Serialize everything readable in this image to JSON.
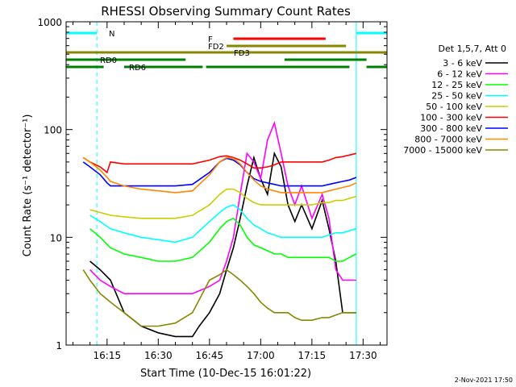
{
  "chart_data": {
    "type": "line",
    "title": "RHESSI Observing Summary Count Rates",
    "xlabel": "Start Time (10-Dec-15 16:01:22)",
    "ylabel": "Count Rate (s⁻¹ detector⁻¹)",
    "yscale": "log",
    "ylim": [
      1,
      1000
    ],
    "xlim": [
      "16:03",
      "17:37"
    ],
    "x_unit": "time of day (HH:MM)",
    "x_ticks": [
      "16:15",
      "16:30",
      "16:45",
      "17:00",
      "17:15",
      "17:30"
    ],
    "y_ticks": [
      "1",
      "10",
      "100",
      "1000"
    ],
    "legend_title": "Det 1,5,7, Att 0",
    "legend_position": "right",
    "date_stamp": "2-Nov-2021 17:50",
    "series": [
      {
        "name": "3 - 6 keV",
        "color": "#000000",
        "x": [
          "16:10",
          "16:13",
          "16:16",
          "16:20",
          "16:25",
          "16:30",
          "16:35",
          "16:40",
          "16:42",
          "16:45",
          "16:48",
          "16:50",
          "16:52",
          "16:54",
          "16:56",
          "16:58",
          "17:00",
          "17:02",
          "17:04",
          "17:06",
          "17:08",
          "17:10",
          "17:12",
          "17:15",
          "17:18",
          "17:20",
          "17:22",
          "17:24",
          "17:26",
          "17:28"
        ],
        "y": [
          6,
          5,
          4,
          2,
          1.5,
          1.3,
          1.2,
          1.2,
          1.5,
          2,
          3,
          5,
          8,
          15,
          30,
          55,
          35,
          25,
          60,
          45,
          20,
          14,
          20,
          12,
          22,
          12,
          6,
          2,
          2,
          2
        ]
      },
      {
        "name": "6 - 12 keV",
        "color": "#ff00ff",
        "x": [
          "16:10",
          "16:13",
          "16:16",
          "16:20",
          "16:25",
          "16:30",
          "16:35",
          "16:40",
          "16:45",
          "16:48",
          "16:50",
          "16:52",
          "16:54",
          "16:56",
          "16:58",
          "17:00",
          "17:02",
          "17:04",
          "17:06",
          "17:08",
          "17:10",
          "17:12",
          "17:15",
          "17:18",
          "17:20",
          "17:22",
          "17:24",
          "17:26",
          "17:28"
        ],
        "y": [
          5,
          4,
          3.5,
          3,
          3,
          3,
          3,
          3,
          3.5,
          4,
          6,
          10,
          25,
          60,
          50,
          35,
          80,
          115,
          60,
          30,
          20,
          30,
          15,
          25,
          15,
          5,
          4,
          4,
          4
        ]
      },
      {
        "name": "12 - 25 keV",
        "color": "#00ff00",
        "x": [
          "16:10",
          "16:13",
          "16:16",
          "16:20",
          "16:25",
          "16:30",
          "16:35",
          "16:40",
          "16:45",
          "16:48",
          "16:50",
          "16:52",
          "16:54",
          "16:56",
          "16:58",
          "17:00",
          "17:02",
          "17:04",
          "17:06",
          "17:08",
          "17:10",
          "17:12",
          "17:15",
          "17:18",
          "17:20",
          "17:22",
          "17:24",
          "17:26",
          "17:28"
        ],
        "y": [
          12,
          10,
          8,
          7,
          6.5,
          6,
          6,
          6.5,
          9,
          12,
          14,
          15,
          13,
          10,
          8.5,
          8,
          7.5,
          7,
          7,
          6.5,
          6.5,
          6.5,
          6.5,
          6.5,
          6.5,
          6,
          6,
          6.5,
          7
        ]
      },
      {
        "name": "25 - 50 keV",
        "color": "#00ffff",
        "x": [
          "16:10",
          "16:13",
          "16:16",
          "16:20",
          "16:25",
          "16:30",
          "16:35",
          "16:40",
          "16:45",
          "16:48",
          "16:50",
          "16:52",
          "16:54",
          "16:56",
          "16:58",
          "17:00",
          "17:02",
          "17:04",
          "17:06",
          "17:08",
          "17:10",
          "17:12",
          "17:15",
          "17:18",
          "17:20",
          "17:22",
          "17:24",
          "17:26",
          "17:28"
        ],
        "y": [
          16,
          14,
          12,
          11,
          10,
          9.5,
          9,
          10,
          14,
          17,
          19,
          20,
          18,
          15,
          13,
          12,
          11,
          10.5,
          10,
          10,
          10,
          10,
          10,
          10,
          10.5,
          11,
          11,
          11.5,
          12
        ]
      },
      {
        "name": "50 - 100 keV",
        "color": "#cccc00",
        "x": [
          "16:10",
          "16:13",
          "16:16",
          "16:20",
          "16:25",
          "16:30",
          "16:35",
          "16:40",
          "16:45",
          "16:48",
          "16:50",
          "16:52",
          "16:54",
          "16:56",
          "16:58",
          "17:00",
          "17:02",
          "17:04",
          "17:06",
          "17:08",
          "17:10",
          "17:12",
          "17:15",
          "17:18",
          "17:20",
          "17:22",
          "17:24",
          "17:26",
          "17:28"
        ],
        "y": [
          18,
          17,
          16,
          15.5,
          15,
          15,
          15,
          16,
          20,
          25,
          28,
          28,
          26,
          23,
          21,
          20,
          20,
          20,
          20,
          20,
          20,
          20,
          20,
          21,
          21,
          22,
          22,
          23,
          24
        ]
      },
      {
        "name": "100 - 300 keV",
        "color": "#ff0000",
        "x": [
          "16:08",
          "16:10",
          "16:13",
          "16:15",
          "16:16",
          "16:20",
          "16:25",
          "16:30",
          "16:35",
          "16:40",
          "16:45",
          "16:48",
          "16:50",
          "16:52",
          "16:54",
          "16:56",
          "16:58",
          "17:00",
          "17:02",
          "17:04",
          "17:06",
          "17:08",
          "17:10",
          "17:12",
          "17:15",
          "17:18",
          "17:20",
          "17:22",
          "17:24",
          "17:26",
          "17:28"
        ],
        "y": [
          55,
          50,
          45,
          40,
          50,
          48,
          48,
          48,
          48,
          48,
          52,
          56,
          57,
          55,
          52,
          48,
          44,
          44,
          45,
          47,
          50,
          50,
          50,
          50,
          50,
          50,
          52,
          55,
          56,
          58,
          60
        ]
      },
      {
        "name": "300 - 800 keV",
        "color": "#0000ff",
        "x": [
          "16:08",
          "16:10",
          "16:13",
          "16:15",
          "16:16",
          "16:20",
          "16:25",
          "16:30",
          "16:35",
          "16:40",
          "16:45",
          "16:48",
          "16:50",
          "16:52",
          "16:54",
          "16:56",
          "16:58",
          "17:00",
          "17:02",
          "17:04",
          "17:06",
          "17:08",
          "17:10",
          "17:12",
          "17:15",
          "17:18",
          "17:20",
          "17:22",
          "17:24",
          "17:26",
          "17:28"
        ],
        "y": [
          50,
          45,
          38,
          32,
          30,
          30,
          30,
          30,
          30,
          31,
          40,
          50,
          54,
          52,
          47,
          40,
          35,
          33,
          32,
          31,
          30,
          30,
          30,
          30,
          30,
          30,
          31,
          32,
          33,
          34,
          36
        ]
      },
      {
        "name": "800 - 7000 keV",
        "color": "#ff8800",
        "x": [
          "16:08",
          "16:10",
          "16:13",
          "16:15",
          "16:16",
          "16:20",
          "16:25",
          "16:30",
          "16:35",
          "16:40",
          "16:45",
          "16:48",
          "16:50",
          "16:52",
          "16:54",
          "16:56",
          "16:58",
          "17:00",
          "17:02",
          "17:04",
          "17:06",
          "17:08",
          "17:10",
          "17:12",
          "17:15",
          "17:18",
          "17:20",
          "17:22",
          "17:24",
          "17:26",
          "17:28"
        ],
        "y": [
          55,
          50,
          42,
          36,
          33,
          30,
          28,
          27,
          26,
          27,
          38,
          50,
          55,
          54,
          48,
          40,
          34,
          30,
          28,
          27,
          26,
          26,
          26,
          26,
          26,
          26,
          27,
          28,
          29,
          30,
          32
        ]
      },
      {
        "name": "7000 - 15000 keV",
        "color": "#888800",
        "x": [
          "16:08",
          "16:10",
          "16:13",
          "16:16",
          "16:20",
          "16:25",
          "16:30",
          "16:35",
          "16:40",
          "16:45",
          "16:48",
          "16:50",
          "16:52",
          "16:54",
          "16:56",
          "16:58",
          "17:00",
          "17:02",
          "17:04",
          "17:06",
          "17:08",
          "17:10",
          "17:12",
          "17:15",
          "17:18",
          "17:20",
          "17:22",
          "17:24",
          "17:26",
          "17:28"
        ],
        "y": [
          5,
          4,
          3,
          2.5,
          2,
          1.5,
          1.5,
          1.6,
          2,
          4,
          4.5,
          5,
          4.5,
          4,
          3.5,
          3,
          2.5,
          2.2,
          2,
          2,
          2,
          1.8,
          1.7,
          1.7,
          1.8,
          1.8,
          1.9,
          2,
          2,
          2
        ]
      }
    ],
    "annotations": [
      {
        "label": "N",
        "color": "#00ffff",
        "segments": [
          [
            "16:03",
            "16:12"
          ],
          [
            "17:28",
            "17:37"
          ]
        ]
      },
      {
        "label": "F",
        "color": "#ff0000",
        "segments": [
          [
            "16:52",
            "17:19"
          ]
        ]
      },
      {
        "label": "FD2",
        "color": "#888800",
        "segments": [
          [
            "16:50",
            "17:25"
          ]
        ]
      },
      {
        "label": "FD3",
        "color": "#888800",
        "segments": [
          [
            "16:03",
            "17:37"
          ]
        ]
      },
      {
        "label": "RD0",
        "color": "#008000",
        "segments": [
          [
            "16:03",
            "16:38"
          ],
          [
            "17:07",
            "17:31"
          ]
        ]
      },
      {
        "label": "RD6",
        "color": "#008000",
        "segments": [
          [
            "16:03",
            "16:14"
          ],
          [
            "16:20",
            "16:43"
          ],
          [
            "16:44",
            "17:26"
          ],
          [
            "17:31",
            "17:37"
          ]
        ]
      }
    ],
    "vertical_markers": [
      {
        "style": "solid",
        "color": "#00ffff",
        "x": [
          "16:03",
          "17:28"
        ]
      },
      {
        "style": "dashed",
        "color": "#00ffff",
        "x": [
          "16:12",
          "17:37"
        ]
      }
    ]
  }
}
